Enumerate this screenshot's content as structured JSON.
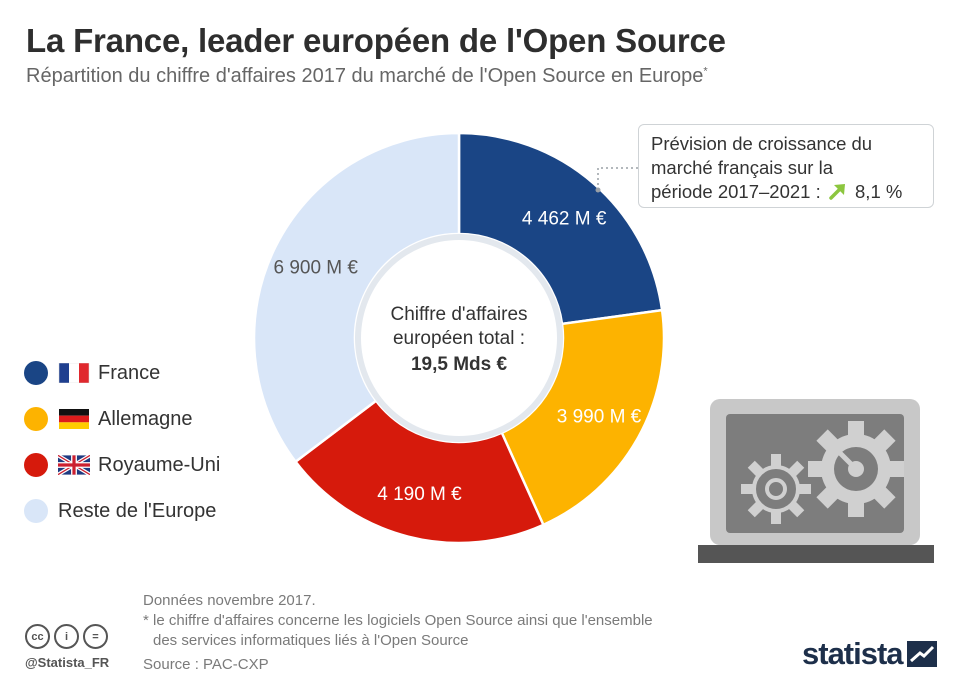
{
  "header": {
    "title": "La France, leader européen de l'Open Source",
    "subtitle": "Répartition du chiffre d'affaires 2017 du marché de l'Open Source en Europe",
    "subtitle_mark": "*"
  },
  "chart_data": {
    "type": "pie",
    "unit": "M €",
    "slices": [
      {
        "name": "France",
        "value": 4462,
        "label": "4 462 M €",
        "color": "#1a4585"
      },
      {
        "name": "Allemagne",
        "value": 3990,
        "label": "3 990 M €",
        "color": "#fdb300"
      },
      {
        "name": "Royaume-Uni",
        "value": 4190,
        "label": "4 190 M €",
        "color": "#d61a0c"
      },
      {
        "name": "Reste de l'Europe",
        "value": 6900,
        "label": "6 900 M €",
        "color": "#d9e6f8"
      }
    ],
    "center_label": {
      "line1": "Chiffre d'affaires",
      "line2": "européen total :",
      "line3": "19,5 Mds €"
    },
    "legend_position": "left"
  },
  "callout": {
    "text_line1": "Prévision de croissance du",
    "text_line2": "marché français sur la",
    "text_line3": "période 2017–2021 :",
    "value": "8,1 %",
    "arrow_color": "#8cc63f"
  },
  "legend": {
    "items": [
      {
        "label": "France",
        "color": "#1a4585",
        "flag": "france-flag"
      },
      {
        "label": "Allemagne",
        "color": "#fdb300",
        "flag": "germany-flag"
      },
      {
        "label": "Royaume-Uni",
        "color": "#d61a0c",
        "flag": "uk-flag"
      },
      {
        "label": "Reste de l'Europe",
        "color": "#d9e6f8",
        "flag": null
      }
    ]
  },
  "footer": {
    "note1": "Données novembre 2017.",
    "note2": "* le chiffre d'affaires concerne les logiciels Open Source ainsi que l'ensemble",
    "note3": "des services informatiques liés à l'Open Source",
    "source": "Source : PAC-CXP",
    "handle": "@Statista_FR",
    "cc_icons": [
      "cc",
      "i",
      "="
    ],
    "brand": "statista"
  },
  "illustration": {
    "icon": "laptop-gears-icon",
    "colors": {
      "frame": "#c8c8c8",
      "screen": "#7d7d7d",
      "base": "#555555"
    }
  }
}
